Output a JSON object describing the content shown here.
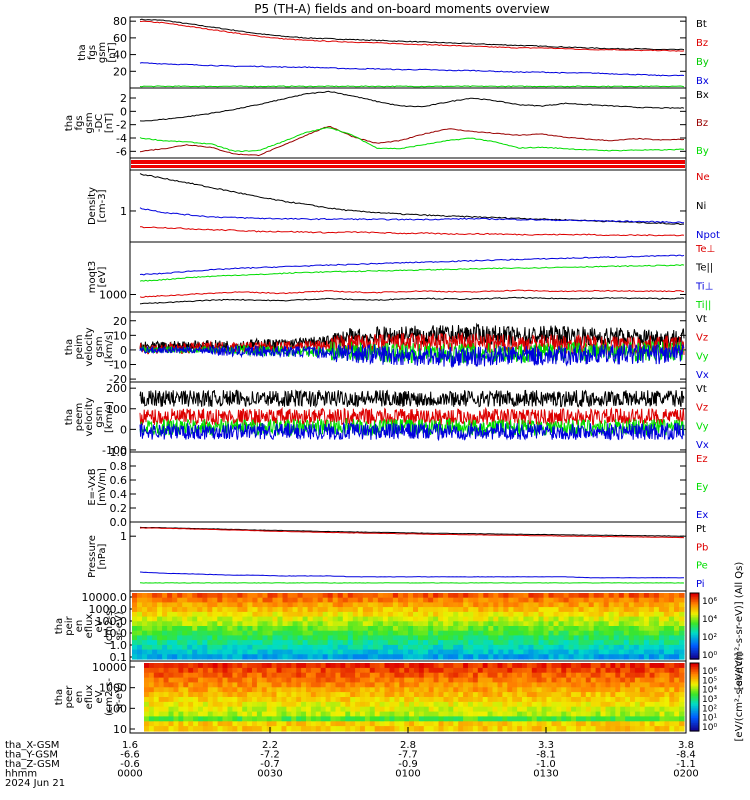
{
  "title": "P5 (TH-A) fields and on-board moments overview",
  "chart_data": [
    {
      "type": "line",
      "ylabel": [
        "tha",
        "fgs",
        "gsm",
        "[nT]"
      ],
      "ylim": [
        0,
        85
      ],
      "yticks": [
        "20",
        "40",
        "60",
        "80"
      ],
      "ytick_values": [
        20,
        40,
        60,
        80
      ],
      "series": [
        {
          "name": "Bt",
          "color": "#000000",
          "values": [
            82,
            81,
            77,
            73,
            69,
            65,
            62,
            60,
            59,
            58,
            57,
            56,
            55,
            54,
            53,
            52,
            51,
            50,
            49,
            48,
            47,
            47,
            46,
            46
          ]
        },
        {
          "name": "Bz",
          "color": "#dd0000",
          "values": [
            80,
            78,
            74,
            70,
            66,
            62,
            59,
            57,
            56,
            55,
            54,
            53,
            52,
            51,
            50,
            49,
            48,
            48,
            47,
            46,
            46,
            45,
            45,
            44
          ]
        },
        {
          "name": "By",
          "color": "#00cc00",
          "values": [
            2,
            2,
            2,
            2,
            2,
            2,
            2,
            2,
            2,
            2,
            2,
            2,
            2,
            2,
            2,
            2,
            2,
            2,
            2,
            2,
            2,
            2,
            2,
            2
          ]
        },
        {
          "name": "Bx",
          "color": "#0000dd",
          "values": [
            30,
            29,
            28,
            27,
            26,
            26,
            25,
            25,
            24,
            23,
            23,
            22,
            22,
            21,
            21,
            20,
            19,
            19,
            18,
            18,
            17,
            16,
            15,
            15
          ]
        }
      ]
    },
    {
      "type": "line",
      "ylabel": [
        "tha",
        "fgs",
        "gsm",
        "-DC",
        "[nT]"
      ],
      "ylim": [
        -7,
        3.5
      ],
      "yticks": [
        "2",
        "0",
        "-2",
        "-4",
        "-6"
      ],
      "ytick_values": [
        2,
        0,
        -2,
        -4,
        -6
      ],
      "series": [
        {
          "name": "Bx",
          "color": "#000000",
          "values": [
            -1.5,
            -1.2,
            -0.8,
            -0.3,
            0.3,
            1.0,
            1.8,
            2.6,
            3.0,
            2.3,
            1.5,
            0.8,
            0.7,
            1.4,
            2.0,
            1.6,
            1.0,
            0.8,
            1.2,
            1.0,
            0.8,
            0.6,
            0.5,
            0.5
          ]
        },
        {
          "name": "Bz",
          "color": "#990000",
          "values": [
            -6.0,
            -5.6,
            -5.0,
            -5.4,
            -6.4,
            -6.6,
            -5.2,
            -3.6,
            -2.2,
            -3.8,
            -4.8,
            -4.4,
            -3.4,
            -2.6,
            -3.0,
            -3.3,
            -3.6,
            -3.4,
            -3.9,
            -4.2,
            -4.4,
            -4.1,
            -4.3,
            -4.2
          ]
        },
        {
          "name": "By",
          "color": "#00dd00",
          "values": [
            -4.0,
            -4.4,
            -4.6,
            -4.9,
            -6.0,
            -5.9,
            -4.6,
            -3.2,
            -2.4,
            -3.6,
            -5.5,
            -5.6,
            -5.0,
            -4.4,
            -4.0,
            -4.6,
            -5.5,
            -5.4,
            -5.6,
            -5.8,
            -5.9,
            -5.8,
            -5.8,
            -5.7
          ]
        }
      ]
    },
    {
      "type": "line",
      "ylabel": [
        "Density",
        "[cm-3]"
      ],
      "log": true,
      "ylim": [
        0.35,
        4.0
      ],
      "yticks": [
        "1"
      ],
      "ytick_values": [
        1
      ],
      "series": [
        {
          "name": "Ne",
          "color": "#dd0000",
          "values": [
            0.58,
            0.57,
            0.55,
            0.53,
            0.52,
            0.5,
            0.5,
            0.49,
            0.48,
            0.49,
            0.48,
            0.47,
            0.47,
            0.46,
            0.46,
            0.46,
            0.45,
            0.45,
            0.45,
            0.45,
            0.44,
            0.44,
            0.44,
            0.44
          ]
        },
        {
          "name": "Ni",
          "color": "#000000",
          "values": [
            3.5,
            3.0,
            2.6,
            2.2,
            1.9,
            1.6,
            1.4,
            1.25,
            1.1,
            1.0,
            0.95,
            0.9,
            0.87,
            0.84,
            0.82,
            0.8,
            0.78,
            0.76,
            0.74,
            0.72,
            0.7,
            0.68,
            0.66,
            0.64
          ]
        },
        {
          "name": "Npot",
          "color": "#0000dd",
          "values": [
            1.1,
            0.95,
            0.88,
            0.82,
            0.8,
            0.78,
            0.77,
            0.76,
            0.76,
            0.76,
            0.75,
            0.75,
            0.75,
            0.76,
            0.77,
            0.76,
            0.75,
            0.74,
            0.73,
            0.72,
            0.71,
            0.7,
            0.69,
            0.68
          ]
        }
      ]
    },
    {
      "type": "line",
      "ylabel": [
        "moqt3",
        "[eV]"
      ],
      "log": true,
      "ylim": [
        500,
        8000
      ],
      "yticks": [
        "1000"
      ],
      "ytick_values": [
        1000
      ],
      "series": [
        {
          "name": "Te⊥",
          "color": "#dd0000",
          "values": [
            900,
            950,
            1000,
            1050,
            1100,
            1080,
            1050,
            1100,
            1150,
            1100,
            1080,
            1120,
            1150,
            1120,
            1100,
            1150,
            1180,
            1150,
            1130,
            1150,
            1160,
            1150,
            1140,
            1150
          ]
        },
        {
          "name": "Te||",
          "color": "#000000",
          "values": [
            700,
            720,
            760,
            800,
            820,
            800,
            780,
            820,
            850,
            820,
            800,
            840,
            860,
            840,
            830,
            860,
            880,
            860,
            850,
            860,
            870,
            860,
            850,
            860
          ]
        },
        {
          "name": "Ti⊥",
          "color": "#0000dd",
          "values": [
            2200,
            2300,
            2500,
            2650,
            2800,
            2900,
            3000,
            3100,
            3200,
            3300,
            3400,
            3500,
            3600,
            3700,
            3800,
            3900,
            4000,
            4100,
            4200,
            4300,
            4400,
            4500,
            4600,
            4700
          ]
        },
        {
          "name": "Ti||",
          "color": "#00dd00",
          "values": [
            1700,
            1800,
            1950,
            2050,
            2150,
            2200,
            2300,
            2400,
            2450,
            2500,
            2550,
            2600,
            2650,
            2700,
            2750,
            2800,
            2850,
            2900,
            2950,
            3000,
            3050,
            3100,
            3150,
            3200
          ]
        }
      ]
    },
    {
      "type": "line",
      "ylabel": [
        "tha",
        "peim",
        "velocity",
        "gsm",
        "[km/s]"
      ],
      "ylim": [
        -22,
        26
      ],
      "yticks": [
        "20",
        "10",
        "0",
        "-10",
        "-20"
      ],
      "ytick_values": [
        20,
        10,
        0,
        -10,
        -20
      ],
      "series": [
        {
          "name": "Vt",
          "color": "#000000",
          "values": [
            2,
            2,
            3,
            3,
            3,
            4,
            4,
            5,
            6,
            8,
            9,
            10,
            10,
            10,
            11,
            10,
            9,
            10,
            10,
            9,
            9,
            8,
            8,
            8
          ]
        },
        {
          "name": "Vz",
          "color": "#dd0000",
          "values": [
            1,
            1,
            1,
            2,
            2,
            2,
            2,
            3,
            3,
            4,
            4,
            5,
            5,
            5,
            5,
            4,
            4,
            4,
            4,
            4,
            3,
            3,
            3,
            3
          ]
        },
        {
          "name": "Vy",
          "color": "#00dd00",
          "values": [
            0,
            0,
            0,
            0,
            0,
            -1,
            -1,
            -1,
            -1,
            -1,
            -2,
            -2,
            -2,
            -2,
            -2,
            -2,
            -2,
            -2,
            -1,
            -1,
            -1,
            -1,
            -1,
            -1
          ]
        },
        {
          "name": "Vx",
          "color": "#0000dd",
          "values": [
            0,
            0,
            0,
            0,
            -1,
            -1,
            -1,
            -1,
            -2,
            -2,
            -3,
            -4,
            -4,
            -5,
            -5,
            -4,
            -4,
            -4,
            -4,
            -3,
            -3,
            -3,
            -3,
            -3
          ]
        }
      ]
    },
    {
      "type": "line",
      "ylabel": [
        "tha",
        "peem",
        "velocity",
        "gsm",
        "[km/s]"
      ],
      "ylim": [
        -110,
        230
      ],
      "yticks": [
        "200",
        "100",
        "0",
        "-100"
      ],
      "ytick_values": [
        200,
        100,
        0,
        -100
      ],
      "series": [
        {
          "name": "Vt",
          "color": "#000000",
          "values": [
            150,
            150,
            150,
            150,
            150,
            150,
            150,
            150,
            150,
            150,
            150,
            150,
            150,
            150,
            150,
            150,
            150,
            150,
            150,
            150,
            150,
            150,
            150,
            150
          ]
        },
        {
          "name": "Vz",
          "color": "#dd0000",
          "values": [
            60,
            60,
            60,
            60,
            60,
            60,
            60,
            60,
            60,
            60,
            60,
            60,
            60,
            60,
            60,
            60,
            60,
            60,
            60,
            60,
            60,
            60,
            60,
            60
          ]
        },
        {
          "name": "Vy",
          "color": "#00dd00",
          "values": [
            10,
            10,
            10,
            10,
            10,
            10,
            10,
            10,
            10,
            10,
            10,
            10,
            10,
            10,
            10,
            10,
            10,
            10,
            10,
            10,
            10,
            10,
            10,
            10
          ]
        },
        {
          "name": "Vx",
          "color": "#0000dd",
          "values": [
            -10,
            -10,
            -10,
            -10,
            -10,
            -10,
            -10,
            -10,
            -10,
            -10,
            -10,
            -10,
            -10,
            -10,
            -10,
            -10,
            -10,
            -10,
            -10,
            -10,
            -10,
            -10,
            -10,
            -10
          ]
        }
      ]
    },
    {
      "type": "line",
      "ylabel": [
        "E=-VxB",
        "[mV/m]"
      ],
      "ylim": [
        0,
        1
      ],
      "yticks": [
        "1.0",
        "0.8",
        "0.6",
        "0.4",
        "0.2",
        "0.0"
      ],
      "ytick_values": [
        1.0,
        0.8,
        0.6,
        0.4,
        0.2,
        0.0
      ],
      "series": [
        {
          "name": "Ez",
          "color": "#dd0000",
          "values": []
        },
        {
          "name": "Ey",
          "color": "#00dd00",
          "values": []
        },
        {
          "name": "Ex",
          "color": "#0000dd",
          "values": []
        }
      ]
    },
    {
      "type": "line",
      "ylabel": [
        "Pressure",
        "[nPa]"
      ],
      "log": true,
      "ylim": [
        0.002,
        5
      ],
      "yticks": [
        "1"
      ],
      "ytick_values": [
        1
      ],
      "series": [
        {
          "name": "Pt",
          "color": "#000000",
          "values": [
            2.7,
            2.6,
            2.45,
            2.3,
            2.15,
            2.0,
            1.9,
            1.8,
            1.7,
            1.62,
            1.55,
            1.48,
            1.42,
            1.37,
            1.33,
            1.29,
            1.25,
            1.21,
            1.17,
            1.13,
            1.1,
            1.07,
            1.04,
            1.0
          ]
        },
        {
          "name": "Pb",
          "color": "#dd0000",
          "values": [
            2.55,
            2.45,
            2.3,
            2.15,
            2.0,
            1.85,
            1.72,
            1.62,
            1.52,
            1.45,
            1.38,
            1.32,
            1.26,
            1.21,
            1.17,
            1.13,
            1.09,
            1.05,
            1.01,
            0.98,
            0.95,
            0.92,
            0.89,
            0.86
          ]
        },
        {
          "name": "Pe",
          "color": "#00dd00",
          "values": [
            0.005,
            0.005,
            0.005,
            0.005,
            0.005,
            0.005,
            0.005,
            0.005,
            0.005,
            0.005,
            0.005,
            0.005,
            0.005,
            0.005,
            0.005,
            0.005,
            0.005,
            0.005,
            0.005,
            0.005,
            0.005,
            0.005,
            0.005,
            0.005
          ]
        },
        {
          "name": "Pi",
          "color": "#0000dd",
          "values": [
            0.017,
            0.015,
            0.014,
            0.013,
            0.012,
            0.012,
            0.011,
            0.011,
            0.011,
            0.01,
            0.01,
            0.01,
            0.01,
            0.01,
            0.01,
            0.01,
            0.01,
            0.01,
            0.01,
            0.009,
            0.009,
            0.009,
            0.009,
            0.009
          ]
        }
      ]
    },
    {
      "type": "heatmap",
      "ylabel": [
        "tha",
        "peir",
        "en",
        "eflux",
        "eV",
        "(cm2-s-",
        "sr-eV)"
      ],
      "yticks": [
        "10000.0",
        "1000.0",
        "100.0",
        "10.0",
        "1.0",
        "0.1"
      ],
      "colorbar_ticks": [
        "10⁶",
        "10⁴",
        "10²",
        "10⁰"
      ],
      "colorbar_label": "[eV/(cm²-s-sr-eV)] (All Qs)"
    },
    {
      "type": "heatmap",
      "ylabel": [
        "tha",
        "peer",
        "en",
        "eflux",
        "eV",
        "(cm2-s-",
        "sr-eV)"
      ],
      "yticks": [
        "10000",
        "1000",
        "100",
        "10"
      ],
      "colorbar_ticks": [
        "10⁶",
        "10⁵",
        "10⁴",
        "10³",
        "10²",
        "10¹",
        "10⁰"
      ],
      "colorbar_label": "[eV/(cm²-s-sr-eV)]"
    }
  ],
  "xaxis": {
    "labels": [
      "tha_X-GSM",
      "tha_Y-GSM",
      "tha_Z-GSM",
      "hhmm",
      "2024 Jun 21"
    ],
    "rows": [
      [
        "1.6",
        "2.2",
        "2.8",
        "3.3",
        "3.8"
      ],
      [
        "-6.6",
        "-7.2",
        "-7.7",
        "-8.1",
        "-8.4"
      ],
      [
        "-0.6",
        "-0.7",
        "-0.9",
        "-1.0",
        "-1.1"
      ],
      [
        "0000",
        "0030",
        "0100",
        "0130",
        "0200"
      ]
    ]
  }
}
